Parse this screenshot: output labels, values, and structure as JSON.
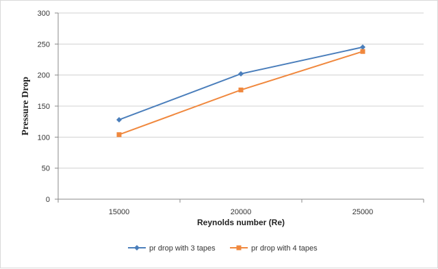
{
  "chart_data": {
    "type": "line",
    "categories": [
      "15000",
      "20000",
      "25000"
    ],
    "series": [
      {
        "name": "pr drop with 3 tapes",
        "values": [
          128,
          202,
          245
        ],
        "color": "#4a7ebb",
        "marker": "diamond"
      },
      {
        "name": "pr drop with 4 tapes",
        "values": [
          104,
          176,
          238
        ],
        "color": "#f0883e",
        "marker": "square"
      }
    ],
    "title": "",
    "xlabel": "Reynolds number (Re)",
    "ylabel": "Pressure Drop",
    "ylim": [
      0,
      300
    ],
    "yticks": [
      0,
      50,
      100,
      150,
      200,
      250,
      300
    ],
    "grid": "horizontal",
    "legend_position": "bottom"
  }
}
